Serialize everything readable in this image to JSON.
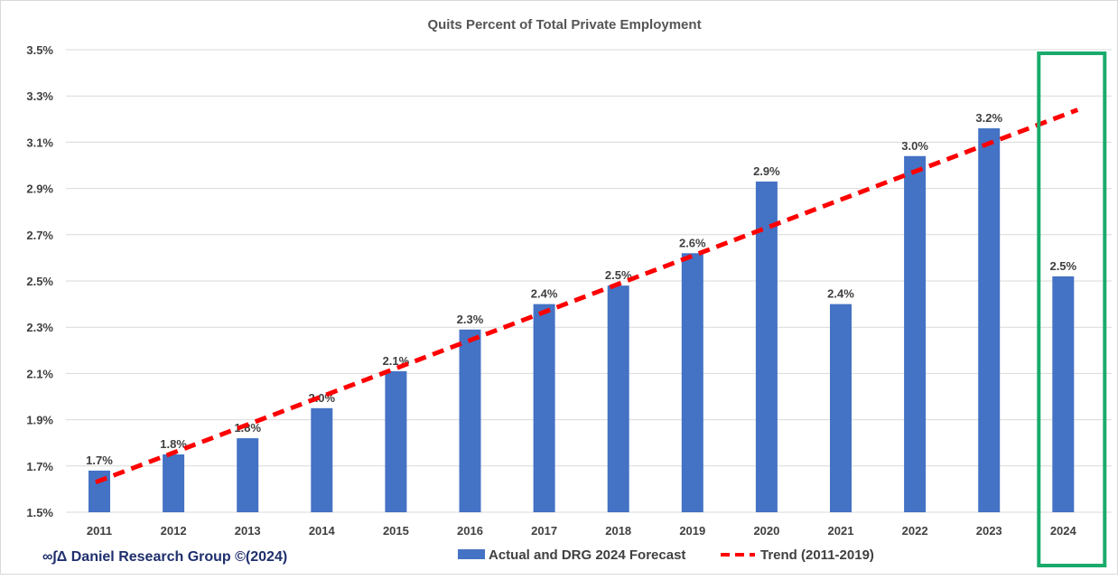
{
  "brand_label": "∞∫Δ Daniel Research Group ©(2024)",
  "colors": {
    "bar": "#4472c4",
    "trend": "#ff0000",
    "highlight_box": "#1aab6c",
    "grid": "#d9d9d9",
    "text": "#404040",
    "brand": "#1f2f6e"
  },
  "chart_data": {
    "type": "bar",
    "title": "Quits Percent of Total Private Employment",
    "xlabel": "",
    "ylabel": "",
    "ylim": [
      1.5,
      3.5
    ],
    "yticks": [
      "1.5%",
      "1.7%",
      "1.9%",
      "2.1%",
      "2.3%",
      "2.5%",
      "2.7%",
      "2.9%",
      "3.1%",
      "3.3%",
      "3.5%"
    ],
    "ytick_values": [
      1.5,
      1.7,
      1.9,
      2.1,
      2.3,
      2.5,
      2.7,
      2.9,
      3.1,
      3.3,
      3.5
    ],
    "grid": true,
    "legend_placement": "bottom",
    "categories": [
      "2011",
      "2012",
      "2013",
      "2014",
      "2015",
      "2016",
      "2017",
      "2018",
      "2019",
      "2020",
      "2021",
      "2022",
      "2023",
      "2024"
    ],
    "series": [
      {
        "name": "Actual and DRG 2024 Forecast",
        "type": "bar",
        "values": [
          1.68,
          1.75,
          1.82,
          1.95,
          2.11,
          2.29,
          2.4,
          2.48,
          2.62,
          2.93,
          2.4,
          3.04,
          3.16,
          2.52
        ],
        "labels": [
          "1.7%",
          "1.8%",
          "1.8%",
          "2.0%",
          "2.1%",
          "2.3%",
          "2.4%",
          "2.5%",
          "2.6%",
          "2.9%",
          "2.4%",
          "3.0%",
          "3.2%",
          "2.5%"
        ]
      },
      {
        "name": "Trend (2011-2019)",
        "type": "line",
        "style": "dashed",
        "start": {
          "x": "2011",
          "y": 1.63
        },
        "end": {
          "x": "2024",
          "y": 3.24
        }
      }
    ],
    "highlight": "2024"
  }
}
